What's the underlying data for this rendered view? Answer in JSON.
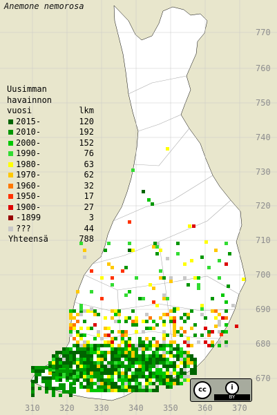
{
  "title": "Anemone nemorosa",
  "legend": {
    "heading": [
      "Uusimman",
      "havainnon"
    ],
    "col_year": "vuosi",
    "col_count": "lkm",
    "rows": [
      {
        "label": "2015-",
        "count": "120",
        "color": "#006400"
      },
      {
        "label": "2010-",
        "count": "192",
        "color": "#009600"
      },
      {
        "label": "2000-",
        "count": "152",
        "color": "#00c800"
      },
      {
        "label": "1990-",
        "count": "76",
        "color": "#32dc32"
      },
      {
        "label": "1980-",
        "count": "63",
        "color": "#ffff00"
      },
      {
        "label": "1970-",
        "count": "62",
        "color": "#ffc800"
      },
      {
        "label": "1960-",
        "count": "32",
        "color": "#ff7800"
      },
      {
        "label": "1950-",
        "count": "17",
        "color": "#ff3200"
      },
      {
        "label": "1900-",
        "count": "27",
        "color": "#dc0000"
      },
      {
        "label": "-1899",
        "count": "3",
        "color": "#960000"
      },
      {
        "label": "???",
        "count": "44",
        "color": "#c8c8c8"
      }
    ],
    "total_label": "Yhteensä",
    "total_count": "788"
  },
  "y_ticks": [
    "770",
    "760",
    "750",
    "740",
    "730",
    "720",
    "710",
    "700",
    "690",
    "680",
    "670"
  ],
  "x_ticks": [
    "310",
    "320",
    "330",
    "340",
    "350",
    "360",
    "370"
  ],
  "license": {
    "cc": "cc",
    "by_icon": "i",
    "by": "BY"
  },
  "colors": {
    "background": "#e8e6cc",
    "land": "#ffffff",
    "grid": "#c8c8c8",
    "borders": "#aaaaaa"
  }
}
